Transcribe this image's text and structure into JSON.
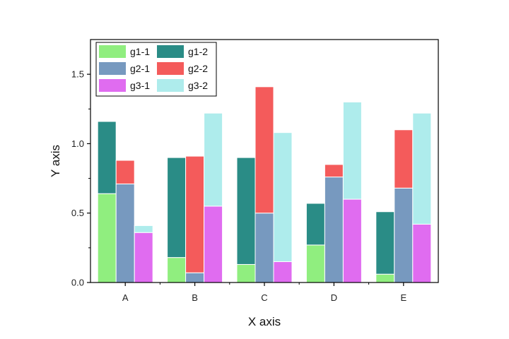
{
  "chart_data": {
    "type": "bar",
    "subtype": "grouped-stacked",
    "title": "",
    "xlabel": "X axis",
    "ylabel": "Y axis",
    "ylim": [
      0,
      1.75
    ],
    "yticks": [
      0.0,
      0.5,
      1.0,
      1.5
    ],
    "ytick_labels": [
      "0.0",
      "0.5",
      "1.0",
      "1.5"
    ],
    "categories": [
      "A",
      "B",
      "C",
      "D",
      "E"
    ],
    "groups": [
      {
        "name": "g1",
        "series": [
          {
            "name": "g1-1",
            "color": "#90ee7f",
            "values": [
              0.64,
              0.18,
              0.13,
              0.27,
              0.06
            ]
          },
          {
            "name": "g1-2",
            "color": "#2a8c86",
            "values": [
              0.52,
              0.72,
              0.77,
              0.3,
              0.45
            ]
          }
        ]
      },
      {
        "name": "g2",
        "series": [
          {
            "name": "g2-1",
            "color": "#7799bf",
            "values": [
              0.71,
              0.07,
              0.5,
              0.76,
              0.68
            ]
          },
          {
            "name": "g2-2",
            "color": "#f45b5b",
            "values": [
              0.17,
              0.84,
              0.91,
              0.09,
              0.42
            ]
          }
        ]
      },
      {
        "name": "g3",
        "series": [
          {
            "name": "g3-1",
            "color": "#e06cf0",
            "values": [
              0.36,
              0.55,
              0.15,
              0.6,
              0.42
            ]
          },
          {
            "name": "g3-2",
            "color": "#aeecec",
            "values": [
              0.05,
              0.67,
              0.93,
              0.7,
              0.8
            ]
          }
        ]
      }
    ],
    "legend": {
      "position": "top-left",
      "columns": 2,
      "entries": [
        "g1-1",
        "g1-2",
        "g2-1",
        "g2-2",
        "g3-1",
        "g3-2"
      ]
    },
    "grid": false
  }
}
